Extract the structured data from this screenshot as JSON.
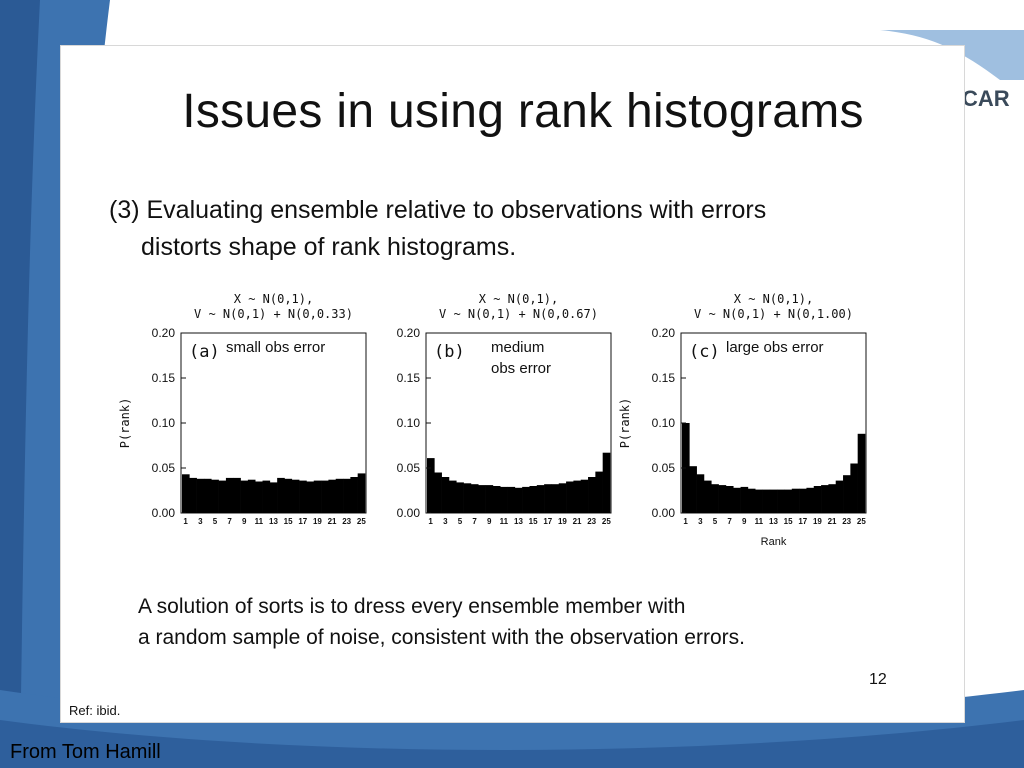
{
  "slide": {
    "title": "Issues in using rank histograms",
    "subtitle_line1": "(3) Evaluating ensemble relative to observations with errors",
    "subtitle_line2": "distorts shape of rank histograms.",
    "solution_line1": "A solution of sorts is to dress every ensemble member with",
    "solution_line2": "a random sample of noise, consistent with the observation errors.",
    "page_number": "12",
    "ref": "Ref: ibid.",
    "credit": "From Tom Hamill",
    "logo_text": "CAR"
  },
  "colors": {
    "background_blue": "#3d73b0",
    "bar_fill": "#000000",
    "frame_border": "#d8d8d8"
  },
  "chart_data": [
    {
      "type": "bar",
      "title_line1": "X ~ N(0,1),",
      "title_line2": "V ~ N(0,1) + N(0,0.33)",
      "panel_label": "(a)",
      "annotation": "small obs error",
      "ylabel": "P(rank)",
      "xlabel": "",
      "ylim": [
        0,
        0.2
      ],
      "yticks": [
        "0.20",
        "0.15",
        "0.10",
        "0.05",
        "0.00"
      ],
      "xtick_labels": [
        "1",
        "3",
        "5",
        "7",
        "9",
        "11",
        "13",
        "15",
        "17",
        "19",
        "21",
        "23",
        "25"
      ],
      "categories": [
        1,
        2,
        3,
        4,
        5,
        6,
        7,
        8,
        9,
        10,
        11,
        12,
        13,
        14,
        15,
        16,
        17,
        18,
        19,
        20,
        21,
        22,
        23,
        24,
        25
      ],
      "values": [
        0.043,
        0.039,
        0.038,
        0.038,
        0.037,
        0.036,
        0.039,
        0.039,
        0.036,
        0.037,
        0.035,
        0.036,
        0.034,
        0.039,
        0.038,
        0.037,
        0.036,
        0.035,
        0.036,
        0.036,
        0.037,
        0.038,
        0.038,
        0.04,
        0.044
      ]
    },
    {
      "type": "bar",
      "title_line1": "X ~ N(0,1),",
      "title_line2": "V ~ N(0,1) + N(0,0.67)",
      "panel_label": "(b)",
      "annotation": "medium\nobs error",
      "ylabel": "",
      "xlabel": "",
      "ylim": [
        0,
        0.2
      ],
      "yticks": [
        "0.20",
        "0.15",
        "0.10",
        "0.05",
        "0.00"
      ],
      "xtick_labels": [
        "1",
        "3",
        "5",
        "7",
        "9",
        "11",
        "13",
        "15",
        "17",
        "19",
        "21",
        "23",
        "25"
      ],
      "categories": [
        1,
        2,
        3,
        4,
        5,
        6,
        7,
        8,
        9,
        10,
        11,
        12,
        13,
        14,
        15,
        16,
        17,
        18,
        19,
        20,
        21,
        22,
        23,
        24,
        25
      ],
      "values": [
        0.061,
        0.045,
        0.04,
        0.036,
        0.034,
        0.033,
        0.032,
        0.031,
        0.031,
        0.03,
        0.029,
        0.029,
        0.028,
        0.029,
        0.03,
        0.031,
        0.032,
        0.032,
        0.033,
        0.035,
        0.036,
        0.037,
        0.04,
        0.046,
        0.067
      ]
    },
    {
      "type": "bar",
      "title_line1": "X ~ N(0,1),",
      "title_line2": "V ~ N(0,1) + N(0,1.00)",
      "panel_label": "(c)",
      "annotation": "large obs error",
      "ylabel": "P(rank)",
      "xlabel": "Rank",
      "ylim": [
        0,
        0.2
      ],
      "yticks": [
        "0.20",
        "0.15",
        "0.10",
        "0.05",
        "0.00"
      ],
      "xtick_labels": [
        "1",
        "3",
        "5",
        "7",
        "9",
        "11",
        "13",
        "15",
        "17",
        "19",
        "21",
        "23",
        "25"
      ],
      "categories": [
        1,
        2,
        3,
        4,
        5,
        6,
        7,
        8,
        9,
        10,
        11,
        12,
        13,
        14,
        15,
        16,
        17,
        18,
        19,
        20,
        21,
        22,
        23,
        24,
        25
      ],
      "values": [
        0.1,
        0.052,
        0.043,
        0.036,
        0.032,
        0.031,
        0.03,
        0.028,
        0.029,
        0.027,
        0.026,
        0.026,
        0.026,
        0.026,
        0.026,
        0.027,
        0.027,
        0.028,
        0.03,
        0.031,
        0.032,
        0.036,
        0.042,
        0.055,
        0.088
      ]
    }
  ]
}
